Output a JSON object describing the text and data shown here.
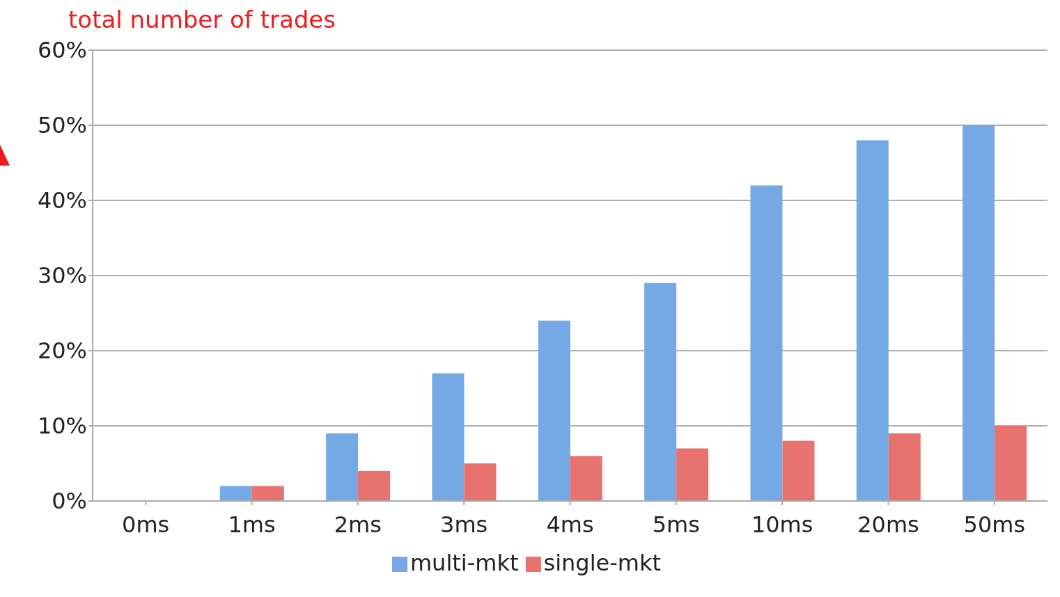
{
  "chart_data": {
    "type": "bar",
    "title": "total number of trades",
    "categories": [
      "0ms",
      "1ms",
      "2ms",
      "3ms",
      "4ms",
      "5ms",
      "10ms",
      "20ms",
      "50ms"
    ],
    "series": [
      {
        "name": "multi-mkt",
        "color": "#74a9e6",
        "values": [
          0,
          2,
          9,
          17,
          24,
          29,
          42,
          48,
          50
        ]
      },
      {
        "name": "single-mkt",
        "color": "#e8736e",
        "values": [
          0,
          2,
          4,
          5,
          6,
          7,
          8,
          9,
          10
        ]
      }
    ],
    "ylim": [
      0,
      60
    ],
    "yticks": [
      {
        "value": 0,
        "label": "0%"
      },
      {
        "value": 10,
        "label": "10%"
      },
      {
        "value": 20,
        "label": "20%"
      },
      {
        "value": 30,
        "label": "30%"
      },
      {
        "value": 40,
        "label": "40%"
      },
      {
        "value": 50,
        "label": "50%"
      },
      {
        "value": 60,
        "label": "60%"
      }
    ],
    "grid": "y",
    "legend": "bottom"
  }
}
